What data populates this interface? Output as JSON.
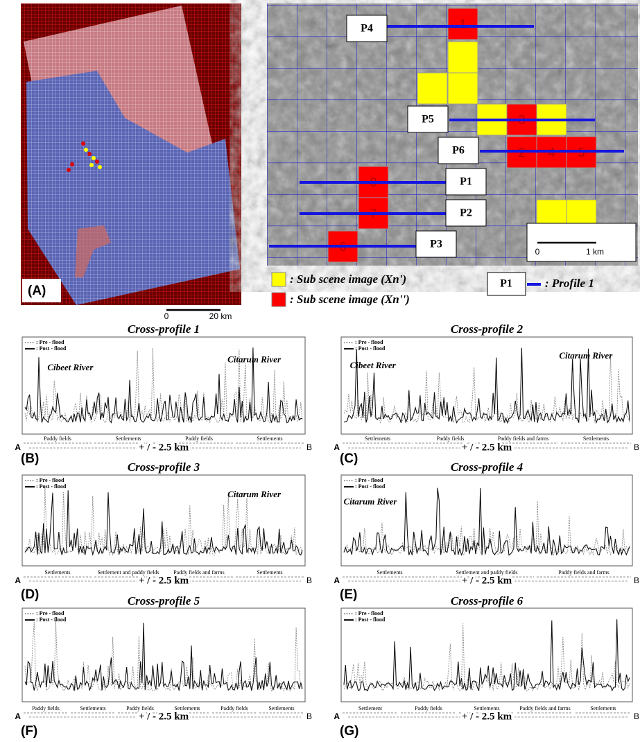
{
  "panel_a": {
    "label": "(A)",
    "scale": [
      "0",
      "20 km"
    ]
  },
  "map": {
    "profiles": [
      "P4",
      "P5",
      "P6",
      "P1",
      "P2",
      "P3"
    ],
    "cells": [
      "1",
      "3",
      "2",
      "4",
      "5",
      "0",
      "7",
      "6"
    ],
    "scale": [
      "0",
      "1 km"
    ]
  },
  "legend": {
    "yellow": ": Sub scene image (Xn')",
    "red": ": Sub scene image (Xn'')",
    "profile_label": "P1",
    "profile_text": ": Profile 1"
  },
  "profiles": [
    {
      "title": "Cross-profile 1",
      "panel": "(B)",
      "legend": [
        ": Pre - flood",
        ": Post - flood"
      ],
      "rivers": [
        "Cibeet River",
        "Citarum River"
      ],
      "landcover": [
        "Paddy fields",
        "Settlements",
        "Paddy fields",
        "Settlements"
      ],
      "start": "A",
      "end": "B",
      "distance": "+ / - 2.5 km"
    },
    {
      "title": "Cross-profile 2",
      "panel": "(C)",
      "legend": [
        ": Pre - flood",
        ": Post - flood"
      ],
      "rivers": [
        "Cibeet River",
        "Citarum River"
      ],
      "landcover": [
        "Settlements",
        "Paddy fields",
        "Paddy fields and farms",
        "Settlements"
      ],
      "start": "A",
      "end": "B",
      "distance": "+ / - 2.5 km"
    },
    {
      "title": "Cross-profile 3",
      "panel": "(D)",
      "legend": [
        ": Pre - flood",
        ": Post - flood"
      ],
      "rivers": [
        "Citarum River"
      ],
      "landcover": [
        "Settlements",
        "Settlement and paddy fields",
        "Paddy fields and farms",
        "Settlements"
      ],
      "start": "A",
      "end": "B",
      "distance": "+ / - 2.5 km"
    },
    {
      "title": "Cross-profile 4",
      "panel": "(E)",
      "legend": [
        ": Pre - flood",
        ": Post - flood"
      ],
      "rivers": [
        "Citarum River"
      ],
      "landcover": [
        "Settlements",
        "Settlement and paddy fields",
        "Paddy fields and farms"
      ],
      "start": "A",
      "end": "B",
      "distance": "+ / - 2.5 km"
    },
    {
      "title": "Cross-profile 5",
      "panel": "(F)",
      "legend": [
        ": Pre - flood",
        ": Post - flood"
      ],
      "rivers": [],
      "landcover": [
        "Paddy fields",
        "Settlements",
        "Paddy fields",
        "Settlements",
        "Paddy fields",
        "Settlements"
      ],
      "start": "A",
      "end": "B",
      "distance": "+ / - 2.5 km"
    },
    {
      "title": "Cross-profile 6",
      "panel": "(G)",
      "legend": [
        ": Pre - flood",
        ": Post - flood"
      ],
      "rivers": [],
      "landcover": [
        "Settlement",
        "Paddy fields",
        "Settlements",
        "Paddy fields and farms",
        "Settlements"
      ],
      "start": "A",
      "end": "B",
      "distance": "+ / - 2.5 km"
    }
  ]
}
